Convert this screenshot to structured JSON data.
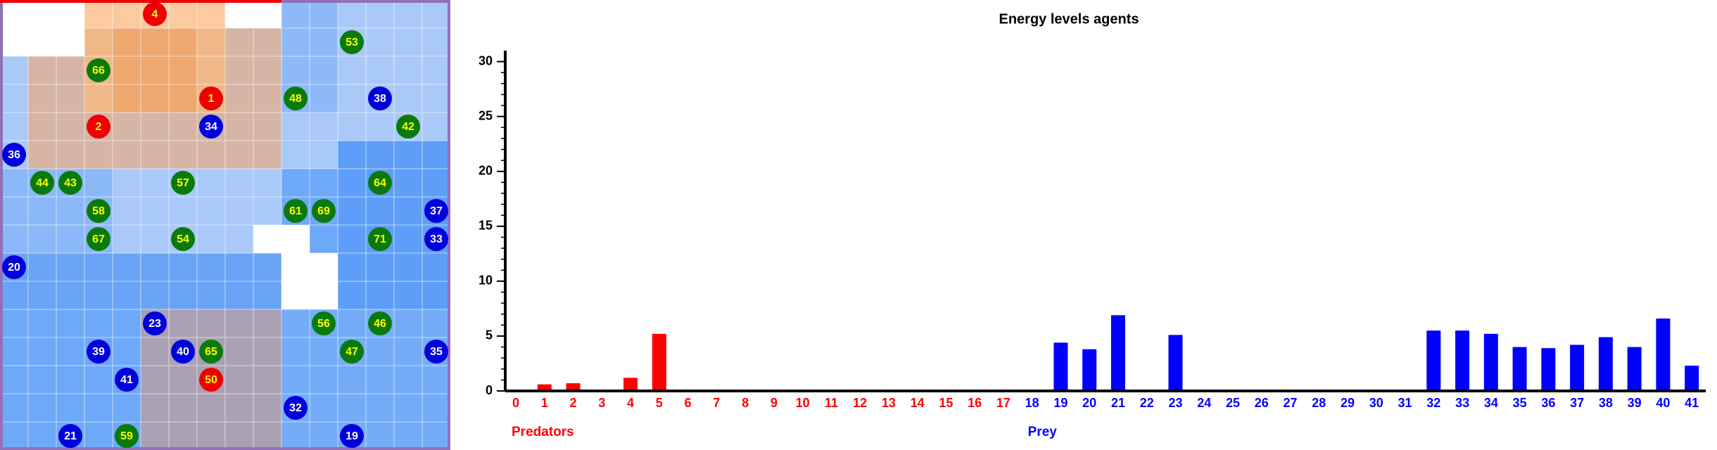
{
  "grid": {
    "columns": 16,
    "rows": 16,
    "agents": [
      {
        "label": "4",
        "cell": [
          5,
          0
        ],
        "color": "#ee0000"
      },
      {
        "label": "53",
        "cell": [
          12,
          1
        ],
        "color": "#0a7a0a"
      },
      {
        "label": "66",
        "cell": [
          3,
          2
        ],
        "color": "#0a7a0a"
      },
      {
        "label": "1",
        "cell": [
          7,
          3
        ],
        "color": "#ee0000"
      },
      {
        "label": "48",
        "cell": [
          10,
          3
        ],
        "color": "#0a7a0a"
      },
      {
        "label": "38",
        "cell": [
          13,
          3
        ],
        "color": "#0000dd"
      },
      {
        "label": "2",
        "cell": [
          3,
          4
        ],
        "color": "#ee0000"
      },
      {
        "label": "34",
        "cell": [
          7,
          4
        ],
        "color": "#0000dd"
      },
      {
        "label": "42",
        "cell": [
          14,
          4
        ],
        "color": "#0a7a0a"
      },
      {
        "label": "36",
        "cell": [
          0,
          5
        ],
        "color": "#0000dd"
      },
      {
        "label": "44",
        "cell": [
          1,
          6
        ],
        "color": "#0a7a0a"
      },
      {
        "label": "43",
        "cell": [
          2,
          6
        ],
        "color": "#0a7a0a"
      },
      {
        "label": "57",
        "cell": [
          6,
          6
        ],
        "color": "#0a7a0a"
      },
      {
        "label": "64",
        "cell": [
          13,
          6
        ],
        "color": "#0a7a0a"
      },
      {
        "label": "58",
        "cell": [
          3,
          7
        ],
        "color": "#0a7a0a"
      },
      {
        "label": "61",
        "cell": [
          10,
          7
        ],
        "color": "#0a7a0a"
      },
      {
        "label": "69",
        "cell": [
          11,
          7
        ],
        "color": "#0a7a0a"
      },
      {
        "label": "37",
        "cell": [
          15,
          7
        ],
        "color": "#0000dd"
      },
      {
        "label": "67",
        "cell": [
          3,
          8
        ],
        "color": "#0a7a0a"
      },
      {
        "label": "54",
        "cell": [
          6,
          8
        ],
        "color": "#0a7a0a"
      },
      {
        "label": "71",
        "cell": [
          13,
          8
        ],
        "color": "#0a7a0a"
      },
      {
        "label": "33",
        "cell": [
          15,
          8
        ],
        "color": "#0000dd"
      },
      {
        "label": "20",
        "cell": [
          0,
          9
        ],
        "color": "#0000dd"
      },
      {
        "label": "23",
        "cell": [
          5,
          11
        ],
        "color": "#0000dd"
      },
      {
        "label": "56",
        "cell": [
          11,
          11
        ],
        "color": "#0a7a0a"
      },
      {
        "label": "46",
        "cell": [
          13,
          11
        ],
        "color": "#0a7a0a"
      },
      {
        "label": "39",
        "cell": [
          3,
          12
        ],
        "color": "#0000dd"
      },
      {
        "label": "40",
        "cell": [
          6,
          12
        ],
        "color": "#0000dd"
      },
      {
        "label": "65",
        "cell": [
          7,
          12
        ],
        "color": "#0a7a0a"
      },
      {
        "label": "47",
        "cell": [
          12,
          12
        ],
        "color": "#0a7a0a"
      },
      {
        "label": "35",
        "cell": [
          15,
          12
        ],
        "color": "#0000dd"
      },
      {
        "label": "41",
        "cell": [
          4,
          13
        ],
        "color": "#0000dd"
      },
      {
        "label": "50",
        "cell": [
          7,
          13
        ],
        "color": "#ee0000"
      },
      {
        "label": "32",
        "cell": [
          10,
          14
        ],
        "color": "#0000dd"
      },
      {
        "label": "21",
        "cell": [
          2,
          15
        ],
        "color": "#0000dd"
      },
      {
        "label": "59",
        "cell": [
          4,
          15
        ],
        "color": "#0a7a0a"
      },
      {
        "label": "19",
        "cell": [
          12,
          15
        ],
        "color": "#0000dd"
      }
    ]
  },
  "chart_data": {
    "type": "bar",
    "title": "Energy levels agents",
    "ylim": [
      0,
      31
    ],
    "yticks": [
      0,
      5,
      10,
      15,
      20,
      25,
      30
    ],
    "yminorticks": [
      0,
      1,
      2,
      3,
      4,
      5,
      6,
      7,
      8,
      9,
      10,
      11,
      12,
      13,
      14,
      15,
      16,
      17,
      18,
      19,
      20,
      21,
      22,
      23,
      24,
      25,
      26,
      27,
      28,
      29,
      30
    ],
    "series": [
      {
        "name": "Predators",
        "color": "#ff0000",
        "categories": [
          "0",
          "1",
          "2",
          "3",
          "4",
          "5",
          "6",
          "7",
          "8",
          "9",
          "10",
          "11",
          "12",
          "13",
          "14",
          "15",
          "16",
          "17"
        ],
        "values": [
          0,
          0.6,
          0.7,
          0,
          1.2,
          5.2,
          0,
          0,
          0,
          0,
          0,
          0,
          0,
          0,
          0,
          0,
          0,
          0
        ]
      },
      {
        "name": "Prey",
        "color": "#0000ff",
        "categories": [
          "18",
          "19",
          "20",
          "21",
          "22",
          "23",
          "24",
          "25",
          "26",
          "27",
          "28",
          "29",
          "30",
          "31",
          "32",
          "33",
          "34",
          "35",
          "36",
          "37",
          "38",
          "39",
          "40",
          "41"
        ],
        "values": [
          0,
          4.4,
          3.8,
          6.9,
          0,
          5.1,
          0,
          0,
          0,
          0,
          0,
          0,
          0,
          0,
          5.5,
          5.5,
          5.2,
          4.0,
          3.9,
          4.2,
          4.9,
          4.0,
          6.6,
          2.3
        ]
      }
    ]
  }
}
